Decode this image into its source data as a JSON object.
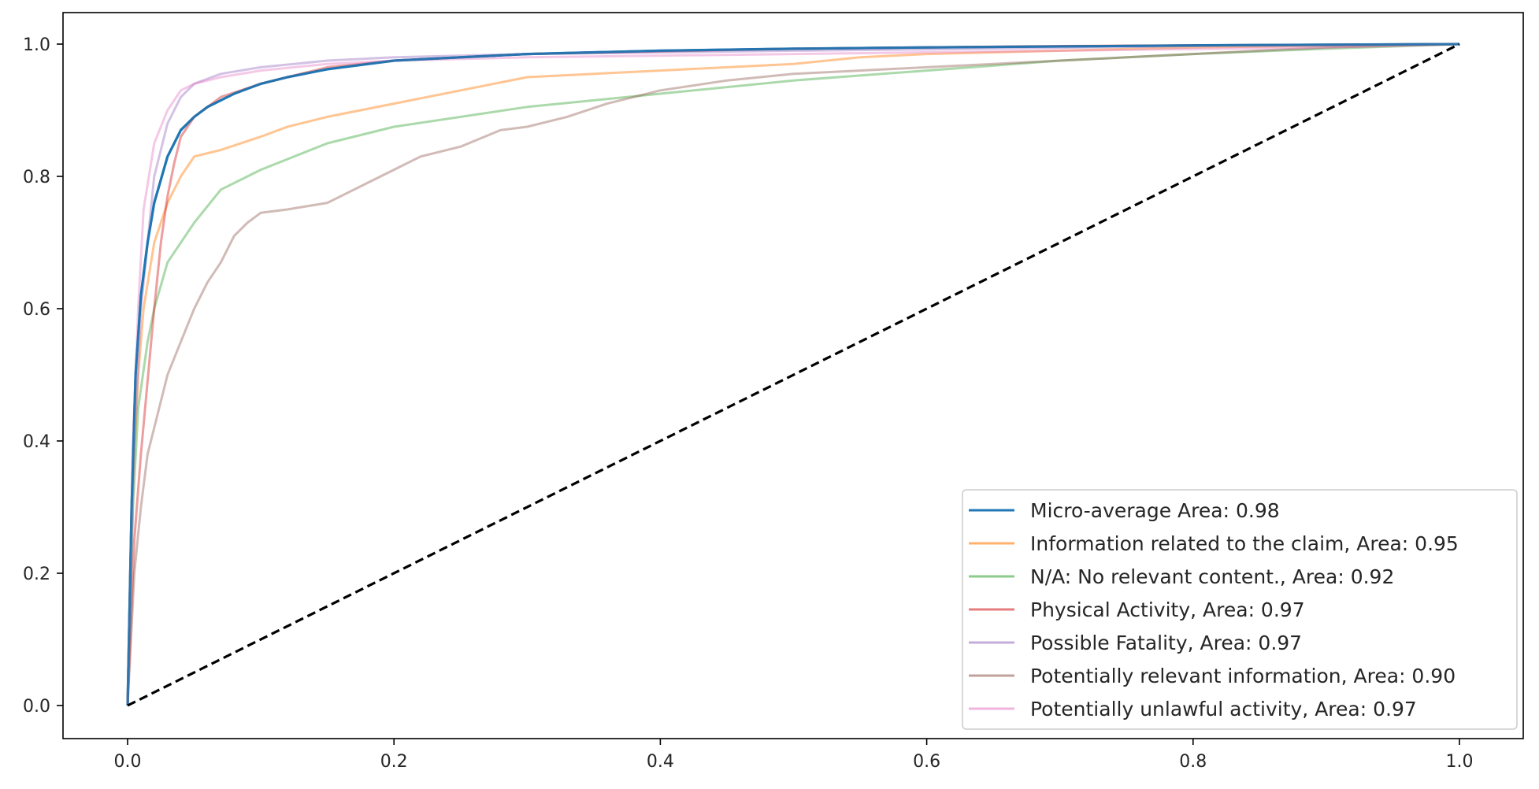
{
  "chart_data": {
    "type": "line",
    "title": "",
    "xlabel": "",
    "ylabel": "",
    "xlim": [
      -0.05,
      1.05
    ],
    "ylim": [
      -0.05,
      1.05
    ],
    "x_ticks": [
      "0.0",
      "0.2",
      "0.4",
      "0.6",
      "0.8",
      "1.0"
    ],
    "y_ticks": [
      "0.0",
      "0.2",
      "0.4",
      "0.6",
      "0.8",
      "1.0"
    ],
    "grid": false,
    "legend_position": "lower-right",
    "series": [
      {
        "name": "Micro-average Area: 0.98",
        "color": "#1f77b4",
        "opacity": 1.0,
        "points": [
          [
            0,
            0
          ],
          [
            0.003,
            0.3
          ],
          [
            0.006,
            0.5
          ],
          [
            0.01,
            0.62
          ],
          [
            0.015,
            0.7
          ],
          [
            0.02,
            0.76
          ],
          [
            0.03,
            0.83
          ],
          [
            0.04,
            0.87
          ],
          [
            0.05,
            0.89
          ],
          [
            0.06,
            0.905
          ],
          [
            0.08,
            0.925
          ],
          [
            0.1,
            0.94
          ],
          [
            0.12,
            0.95
          ],
          [
            0.15,
            0.962
          ],
          [
            0.2,
            0.975
          ],
          [
            0.3,
            0.985
          ],
          [
            0.4,
            0.99
          ],
          [
            0.5,
            0.993
          ],
          [
            0.6,
            0.995
          ],
          [
            0.8,
            0.998
          ],
          [
            1.0,
            1.0
          ]
        ]
      },
      {
        "name": "Information related to the claim, Area: 0.95",
        "color": "#ff7f0e",
        "opacity": 0.45,
        "points": [
          [
            0,
            0
          ],
          [
            0.003,
            0.3
          ],
          [
            0.008,
            0.5
          ],
          [
            0.012,
            0.6
          ],
          [
            0.02,
            0.7
          ],
          [
            0.03,
            0.76
          ],
          [
            0.04,
            0.8
          ],
          [
            0.05,
            0.83
          ],
          [
            0.07,
            0.84
          ],
          [
            0.1,
            0.86
          ],
          [
            0.12,
            0.875
          ],
          [
            0.15,
            0.89
          ],
          [
            0.2,
            0.91
          ],
          [
            0.25,
            0.93
          ],
          [
            0.3,
            0.95
          ],
          [
            0.4,
            0.96
          ],
          [
            0.5,
            0.97
          ],
          [
            0.55,
            0.98
          ],
          [
            0.6,
            0.985
          ],
          [
            0.8,
            0.995
          ],
          [
            1.0,
            1.0
          ]
        ]
      },
      {
        "name": "N/A: No relevant content., Area: 0.92",
        "color": "#2ca02c",
        "opacity": 0.4,
        "points": [
          [
            0,
            0
          ],
          [
            0.004,
            0.3
          ],
          [
            0.008,
            0.45
          ],
          [
            0.015,
            0.55
          ],
          [
            0.02,
            0.6
          ],
          [
            0.03,
            0.67
          ],
          [
            0.05,
            0.73
          ],
          [
            0.07,
            0.78
          ],
          [
            0.1,
            0.81
          ],
          [
            0.15,
            0.85
          ],
          [
            0.2,
            0.875
          ],
          [
            0.3,
            0.905
          ],
          [
            0.4,
            0.925
          ],
          [
            0.5,
            0.945
          ],
          [
            0.6,
            0.96
          ],
          [
            0.7,
            0.975
          ],
          [
            0.8,
            0.985
          ],
          [
            0.9,
            0.993
          ],
          [
            1.0,
            1.0
          ]
        ]
      },
      {
        "name": "Physical Activity, Area: 0.97",
        "color": "#d62728",
        "opacity": 0.45,
        "points": [
          [
            0,
            0
          ],
          [
            0.005,
            0.25
          ],
          [
            0.01,
            0.38
          ],
          [
            0.02,
            0.6
          ],
          [
            0.025,
            0.7
          ],
          [
            0.03,
            0.77
          ],
          [
            0.035,
            0.82
          ],
          [
            0.04,
            0.86
          ],
          [
            0.05,
            0.89
          ],
          [
            0.07,
            0.92
          ],
          [
            0.1,
            0.94
          ],
          [
            0.15,
            0.965
          ],
          [
            0.2,
            0.975
          ],
          [
            0.3,
            0.985
          ],
          [
            0.5,
            0.993
          ],
          [
            0.7,
            0.997
          ],
          [
            1.0,
            1.0
          ]
        ]
      },
      {
        "name": "Possible Fatality, Area: 0.97",
        "color": "#9467bd",
        "opacity": 0.4,
        "points": [
          [
            0,
            0
          ],
          [
            0.005,
            0.4
          ],
          [
            0.01,
            0.6
          ],
          [
            0.02,
            0.8
          ],
          [
            0.03,
            0.88
          ],
          [
            0.04,
            0.92
          ],
          [
            0.05,
            0.94
          ],
          [
            0.07,
            0.955
          ],
          [
            0.1,
            0.965
          ],
          [
            0.15,
            0.975
          ],
          [
            0.2,
            0.98
          ],
          [
            0.3,
            0.985
          ],
          [
            0.5,
            0.99
          ],
          [
            0.6,
            0.992
          ],
          [
            0.8,
            0.997
          ],
          [
            1.0,
            1.0
          ]
        ]
      },
      {
        "name": "Potentially relevant information, Area: 0.90",
        "color": "#8c564b",
        "opacity": 0.4,
        "points": [
          [
            0,
            0
          ],
          [
            0.005,
            0.2
          ],
          [
            0.01,
            0.3
          ],
          [
            0.015,
            0.38
          ],
          [
            0.02,
            0.42
          ],
          [
            0.03,
            0.5
          ],
          [
            0.04,
            0.55
          ],
          [
            0.05,
            0.6
          ],
          [
            0.06,
            0.64
          ],
          [
            0.07,
            0.67
          ],
          [
            0.08,
            0.71
          ],
          [
            0.09,
            0.73
          ],
          [
            0.1,
            0.745
          ],
          [
            0.12,
            0.75
          ],
          [
            0.15,
            0.76
          ],
          [
            0.17,
            0.78
          ],
          [
            0.18,
            0.79
          ],
          [
            0.2,
            0.81
          ],
          [
            0.22,
            0.83
          ],
          [
            0.25,
            0.845
          ],
          [
            0.28,
            0.87
          ],
          [
            0.3,
            0.875
          ],
          [
            0.33,
            0.89
          ],
          [
            0.36,
            0.91
          ],
          [
            0.4,
            0.93
          ],
          [
            0.45,
            0.945
          ],
          [
            0.5,
            0.955
          ],
          [
            0.55,
            0.96
          ],
          [
            0.6,
            0.965
          ],
          [
            0.65,
            0.97
          ],
          [
            0.7,
            0.975
          ],
          [
            0.75,
            0.98
          ],
          [
            0.8,
            0.985
          ],
          [
            0.85,
            0.99
          ],
          [
            0.9,
            0.995
          ],
          [
            1.0,
            1.0
          ]
        ]
      },
      {
        "name": "Potentially unlawful activity, Area: 0.97",
        "color": "#e377c2",
        "opacity": 0.4,
        "points": [
          [
            0,
            0
          ],
          [
            0.004,
            0.4
          ],
          [
            0.008,
            0.6
          ],
          [
            0.012,
            0.75
          ],
          [
            0.02,
            0.85
          ],
          [
            0.03,
            0.9
          ],
          [
            0.04,
            0.93
          ],
          [
            0.05,
            0.94
          ],
          [
            0.07,
            0.95
          ],
          [
            0.1,
            0.96
          ],
          [
            0.15,
            0.97
          ],
          [
            0.2,
            0.975
          ],
          [
            0.3,
            0.98
          ],
          [
            0.5,
            0.985
          ],
          [
            0.7,
            0.99
          ],
          [
            0.9,
            0.995
          ],
          [
            1.0,
            1.0
          ]
        ]
      }
    ],
    "reference_line": {
      "points": [
        [
          0,
          0
        ],
        [
          1,
          1
        ]
      ],
      "style": "dashed",
      "color": "#000000"
    }
  }
}
